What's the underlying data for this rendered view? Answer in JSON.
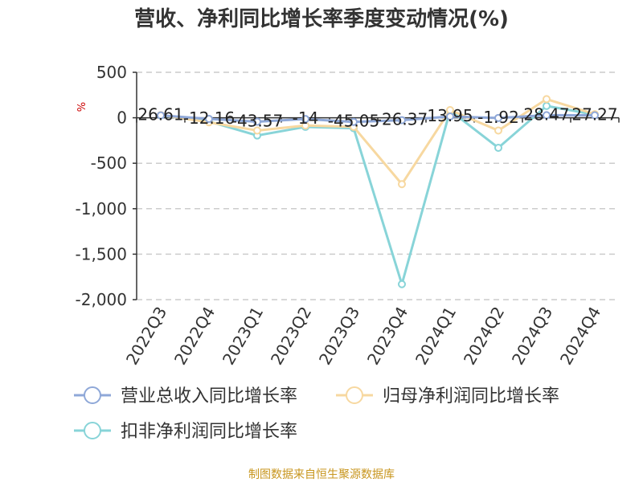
{
  "chart_data": {
    "type": "line",
    "title": "营收、净利同比增长率季度变动情况(%)",
    "ylabel": "%",
    "xlabel": "",
    "categories": [
      "2022Q3",
      "2022Q4",
      "2023Q1",
      "2023Q2",
      "2023Q3",
      "2023Q4",
      "2024Q1",
      "2024Q2",
      "2024Q3",
      "2024Q4"
    ],
    "ylim": [
      -2000,
      500
    ],
    "yticks": [
      500,
      0,
      -500,
      -1000,
      -1500,
      -2000
    ],
    "ytick_labels": [
      "500",
      "0",
      "-500",
      "-1,000",
      "-1,500",
      "-2,000"
    ],
    "grid": true,
    "legend_position": "bottom",
    "series": [
      {
        "name": "营业总收入同比增长率",
        "color": "#8fa8d8",
        "values": [
          26.61,
          -12.16,
          -43.57,
          -14,
          -45.05,
          -26.37,
          13.95,
          -1.92,
          28.47,
          27.27
        ],
        "labels": [
          "26.61",
          "-12.16",
          "-43.57",
          "-14",
          "-45.05",
          "-26.37",
          "13.95",
          "-1.92",
          "28.47",
          "27.27"
        ]
      },
      {
        "name": "归母净利润同比增长率",
        "color": "#f7d8a0",
        "values": [
          30,
          -50,
          -140,
          -85,
          -100,
          -730,
          85,
          -140,
          205,
          40
        ]
      },
      {
        "name": "扣非净利润同比增长率",
        "color": "#88d4d8",
        "values": [
          25,
          -40,
          -195,
          -100,
          -115,
          -1830,
          80,
          -330,
          130,
          35
        ]
      }
    ],
    "label_series_index": 0
  },
  "footer": {
    "source": "制图数据来自恒生聚源数据库"
  }
}
